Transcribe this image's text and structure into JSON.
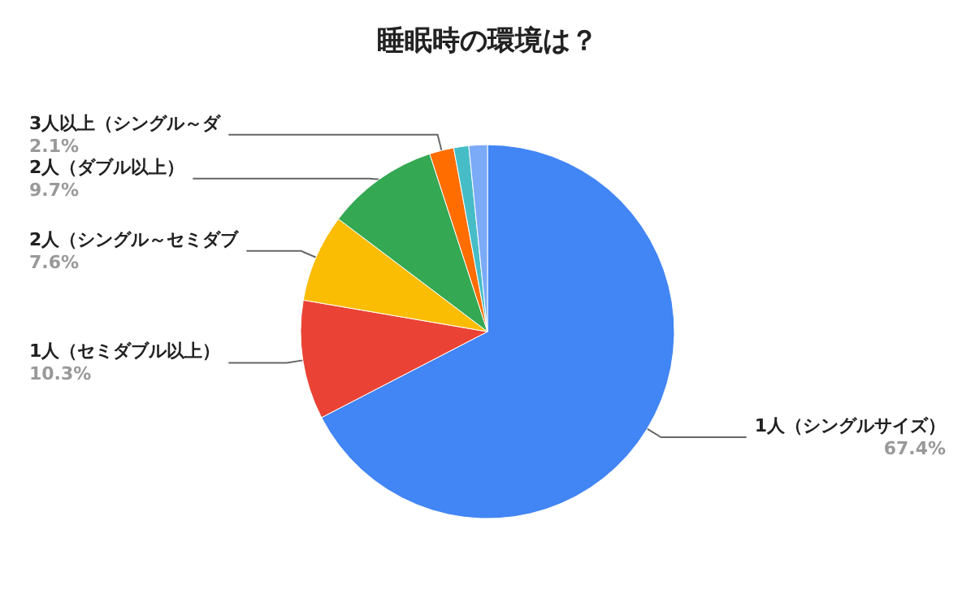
{
  "chart_data": {
    "type": "pie",
    "title": "睡眠時の環境は？",
    "categories": [
      "1人（シングルサイズ）",
      "1人（セミダブル以上）",
      "2人（シングル～セミダブ",
      "2人（ダブル以上）",
      "3人以上（シングル～ダ",
      null,
      null
    ],
    "values": [
      67.4,
      10.3,
      7.6,
      9.7,
      2.1,
      1.3,
      1.6
    ],
    "value_labels": [
      "67.4%",
      "10.3%",
      "7.6%",
      "9.7%",
      "2.1%",
      null,
      null
    ],
    "colors": [
      "#4285f4",
      "#ea4335",
      "#fbbc04",
      "#34a853",
      "#ff6d01",
      "#46bdc6",
      "#7baaf7"
    ],
    "legend": false
  }
}
